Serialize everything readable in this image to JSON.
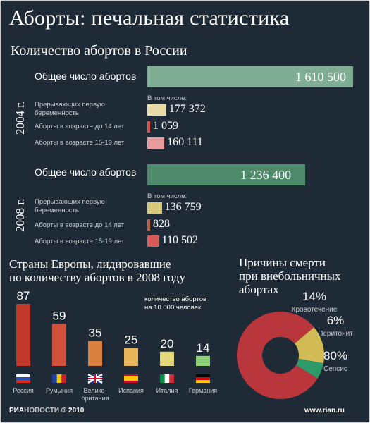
{
  "title": "Аборты: печальная статистика",
  "russia": {
    "subtitle": "Количество абортов в России",
    "including_label": "В том числе:",
    "years": [
      {
        "year": "2004 г.",
        "total_label": "Общее число абортов",
        "total_value": "1 610 500",
        "rows": [
          {
            "label": "Прерывающих первую беременность",
            "value": "177 372"
          },
          {
            "label": "Аборты в возрасте до 14 лет",
            "value": "1 059"
          },
          {
            "label": "Аборты в возрасте 15-19 лет",
            "value": "160 111"
          }
        ]
      },
      {
        "year": "2008 г.",
        "total_label": "Общее число  абортов",
        "total_value": "1 236 400",
        "rows": [
          {
            "label": "Прерывающих первую беременность",
            "value": "136 759"
          },
          {
            "label": "Аборты в возрасте до 14 лет",
            "value": "828"
          },
          {
            "label": "Аборты в возрасте 15-19 лет",
            "value": "110 502"
          }
        ]
      }
    ]
  },
  "europe": {
    "title_line1": "Страны Европы, лидировавшие",
    "title_line2": "по количеству абортов в 2008 году",
    "note_line1": "количество абортов",
    "note_line2": "на 10 000 человек"
  },
  "causes": {
    "title_line1": "Причины смерти",
    "title_line2": "при внебольничных",
    "title_line3": "абортах"
  },
  "footer": {
    "brand_part1": "РИА",
    "brand_part2": "НОВОСТИ",
    "copyright": "© 2010",
    "url": "www.rian.ru"
  },
  "colors": {
    "background": "#1f2a37",
    "total_2004": "#7fae95",
    "total_2008": "#4e8b6b",
    "first_pregnancy": "#e8d9a6",
    "under14": "#d9534f",
    "age15_19": "#e99a9c",
    "first_pregnancy_2008": "#d8c97a",
    "under14_2008": "#c0614a",
    "age15_19_2008": "#d65a5a"
  },
  "chart_data": [
    {
      "type": "bar",
      "title": "Количество абортов в России",
      "orientation": "horizontal",
      "categories": [
        "Общее число абортов",
        "Прерывающих первую беременность",
        "Аборты в возрасте до 14 лет",
        "Аборты в возрасте 15-19 лет"
      ],
      "series": [
        {
          "name": "2004 г.",
          "values": [
            1610500,
            177372,
            1059,
            160111
          ]
        },
        {
          "name": "2008 г.",
          "values": [
            1236400,
            136759,
            828,
            110502
          ]
        }
      ]
    },
    {
      "type": "bar",
      "title": "Страны Европы, лидировавшие по количеству абортов в 2008 году",
      "ylabel": "количество абортов на 10 000 человек",
      "categories": [
        "Россия",
        "Румыния",
        "Велико-британия",
        "Испания",
        "Италия",
        "Германия"
      ],
      "values": [
        87,
        59,
        35,
        25,
        20,
        14
      ],
      "colors": [
        "#c0392b",
        "#d0503c",
        "#d9803f",
        "#e8b55a",
        "#e3d97a",
        "#8fd17a"
      ],
      "flags": [
        "russia-flag",
        "romania-flag",
        "uk-flag",
        "spain-flag",
        "italy-flag",
        "germany-flag"
      ]
    },
    {
      "type": "pie",
      "title": "Причины смерти при внебольничных абортах",
      "categories": [
        "Кровотечение",
        "Перитонит",
        "Сепсис"
      ],
      "values": [
        14,
        6,
        80
      ],
      "value_labels": [
        "14%",
        "6%",
        "80%"
      ],
      "colors": [
        "#d1bb54",
        "#2e9a6a",
        "#b8363c"
      ]
    }
  ]
}
